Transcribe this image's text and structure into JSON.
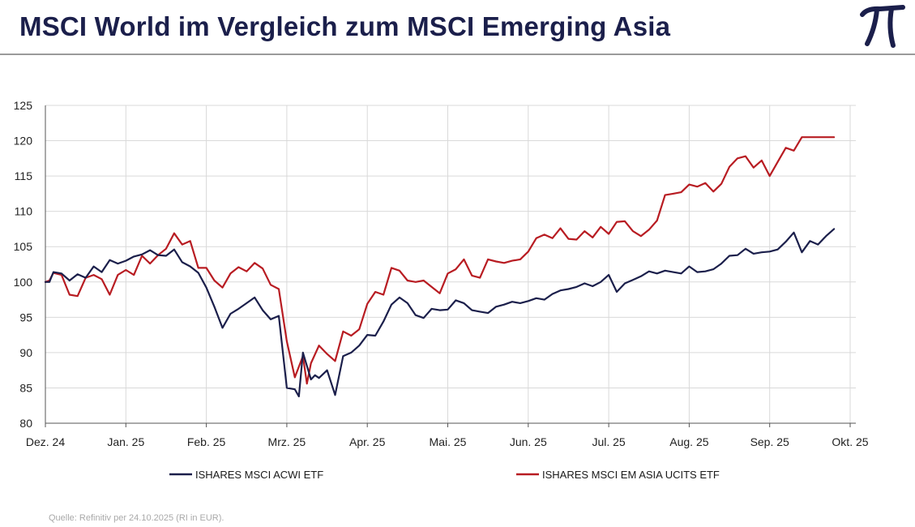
{
  "title": "MSCI World im Vergleich zum MSCI Emerging Asia",
  "logo": {
    "icon": "pi-icon",
    "glyph": "π",
    "color": "#1b1f4b"
  },
  "source_note": "Quelle: Refinitiv per 24.10.2025 (RI in EUR).",
  "colors": {
    "title": "#1b1f4b",
    "acwi": "#1b1f4b",
    "em_asia": "#b81c22",
    "grid": "#d9d9d9",
    "axis": "#555555"
  },
  "chart_data": {
    "type": "line",
    "title": "MSCI World im Vergleich zum MSCI Emerging Asia",
    "xlabel": "",
    "ylabel": "",
    "ylim": [
      80,
      125
    ],
    "yticks": [
      "80",
      "85",
      "90",
      "95",
      "100",
      "105",
      "110",
      "115",
      "120",
      "125"
    ],
    "xlim": [
      0,
      10.24
    ],
    "xticks": [
      "Dez. 24",
      "Jan. 25",
      "Feb. 25",
      "Mrz. 25",
      "Apr. 25",
      "Mai. 25",
      "Jun. 25",
      "Jul. 25",
      "Aug. 25",
      "Sep. 25",
      "Okt. 25"
    ],
    "legend_position": "bottom",
    "grid": true,
    "series": [
      {
        "name": "ISHARES MSCI ACWI ETF",
        "color": "#1b1f4b",
        "x": [
          0,
          0.05,
          0.1,
          0.2,
          0.3,
          0.4,
          0.5,
          0.6,
          0.7,
          0.8,
          0.9,
          1.0,
          1.1,
          1.2,
          1.3,
          1.4,
          1.5,
          1.6,
          1.7,
          1.8,
          1.9,
          2.0,
          2.1,
          2.2,
          2.3,
          2.4,
          2.5,
          2.6,
          2.7,
          2.8,
          2.9,
          3.0,
          3.1,
          3.15,
          3.2,
          3.3,
          3.35,
          3.4,
          3.5,
          3.6,
          3.7,
          3.8,
          3.9,
          4.0,
          4.1,
          4.2,
          4.3,
          4.4,
          4.5,
          4.6,
          4.7,
          4.8,
          4.9,
          5.0,
          5.1,
          5.2,
          5.3,
          5.4,
          5.5,
          5.6,
          5.7,
          5.8,
          5.9,
          6.0,
          6.1,
          6.2,
          6.3,
          6.4,
          6.5,
          6.6,
          6.7,
          6.8,
          6.9,
          7.0,
          7.1,
          7.2,
          7.3,
          7.4,
          7.5,
          7.6,
          7.7,
          7.8,
          7.9,
          8.0,
          8.1,
          8.2,
          8.3,
          8.4,
          8.5,
          8.6,
          8.7,
          8.8,
          8.9,
          9.0,
          9.1,
          9.2,
          9.3,
          9.4,
          9.5,
          9.6,
          9.7,
          9.8
        ],
        "values": [
          100,
          100,
          101.4,
          101.2,
          100.2,
          101.1,
          100.6,
          102.2,
          101.4,
          103.1,
          102.6,
          103.0,
          103.6,
          103.9,
          104.5,
          103.8,
          103.7,
          104.6,
          102.8,
          102.2,
          101.3,
          99.2,
          96.5,
          93.5,
          95.5,
          96.2,
          97.0,
          97.8,
          96.0,
          94.7,
          95.2,
          85.0,
          84.8,
          83.8,
          90.0,
          86.2,
          86.8,
          86.4,
          87.5,
          84.0,
          89.5,
          90.0,
          91.0,
          92.5,
          92.4,
          94.4,
          96.8,
          97.8,
          97.0,
          95.3,
          94.9,
          96.2,
          96.0,
          96.1,
          97.4,
          97.0,
          96.0,
          95.8,
          95.6,
          96.5,
          96.8,
          97.2,
          97.0,
          97.3,
          97.7,
          97.5,
          98.3,
          98.8,
          99.0,
          99.3,
          99.8,
          99.4,
          100.0,
          101.0,
          98.6,
          99.8,
          100.3,
          100.8,
          101.5,
          101.2,
          101.6,
          101.4,
          101.2,
          102.2,
          101.4,
          101.5,
          101.8,
          102.6,
          103.7,
          103.8,
          104.7,
          104.0,
          104.2,
          104.3,
          104.6,
          105.7,
          107.0,
          104.2,
          105.8,
          105.3,
          106.5,
          107.5
        ]
      },
      {
        "name": "ISHARES MSCI EM ASIA UCITS ETF",
        "color": "#b81c22",
        "x": [
          0,
          0.05,
          0.1,
          0.2,
          0.3,
          0.4,
          0.5,
          0.6,
          0.7,
          0.8,
          0.9,
          1.0,
          1.1,
          1.2,
          1.3,
          1.4,
          1.5,
          1.6,
          1.7,
          1.8,
          1.9,
          2.0,
          2.1,
          2.2,
          2.3,
          2.4,
          2.5,
          2.6,
          2.7,
          2.8,
          2.9,
          3.0,
          3.1,
          3.2,
          3.25,
          3.3,
          3.4,
          3.5,
          3.6,
          3.7,
          3.8,
          3.9,
          4.0,
          4.1,
          4.2,
          4.3,
          4.4,
          4.5,
          4.6,
          4.7,
          4.8,
          4.9,
          5.0,
          5.1,
          5.2,
          5.3,
          5.4,
          5.5,
          5.6,
          5.7,
          5.8,
          5.9,
          6.0,
          6.1,
          6.2,
          6.3,
          6.4,
          6.5,
          6.6,
          6.7,
          6.8,
          6.9,
          7.0,
          7.1,
          7.2,
          7.3,
          7.4,
          7.5,
          7.6,
          7.7,
          7.8,
          7.9,
          8.0,
          8.1,
          8.2,
          8.3,
          8.4,
          8.5,
          8.6,
          8.7,
          8.8,
          8.9,
          9.0,
          9.1,
          9.2,
          9.3,
          9.4,
          9.5,
          9.6,
          9.7,
          9.8
        ],
        "values": [
          100,
          100.2,
          101.3,
          101.0,
          98.2,
          98.0,
          100.6,
          101.0,
          100.4,
          98.2,
          101.0,
          101.7,
          101.0,
          103.7,
          102.6,
          103.8,
          104.7,
          106.9,
          105.3,
          105.8,
          102.0,
          102.0,
          100.2,
          99.2,
          101.2,
          102.1,
          101.5,
          102.7,
          101.9,
          99.6,
          99.0,
          91.6,
          86.5,
          89.5,
          85.6,
          88.5,
          91.0,
          89.8,
          88.8,
          93.0,
          92.4,
          93.3,
          96.9,
          98.6,
          98.2,
          102.0,
          101.6,
          100.2,
          100.0,
          100.2,
          99.3,
          98.4,
          101.2,
          101.8,
          103.2,
          100.9,
          100.6,
          103.2,
          102.9,
          102.7,
          103.0,
          103.2,
          104.3,
          106.2,
          106.7,
          106.2,
          107.6,
          106.1,
          106.0,
          107.2,
          106.3,
          107.8,
          106.8,
          108.5,
          108.6,
          107.2,
          106.5,
          107.4,
          108.7,
          112.3,
          112.5,
          112.7,
          113.8,
          113.5,
          114.0,
          112.8,
          113.9,
          116.3,
          117.5,
          117.8,
          116.2,
          117.2,
          115.0,
          117.0,
          119.0,
          118.6,
          120.5,
          120.5,
          120.5,
          120.5,
          120.5
        ]
      }
    ]
  }
}
